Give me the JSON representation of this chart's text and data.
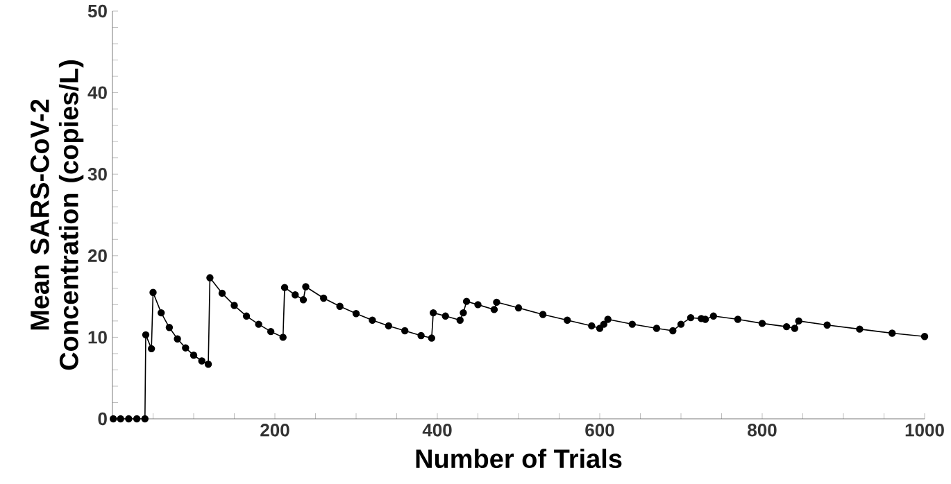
{
  "chart_data": {
    "type": "line",
    "xlabel": "Number of Trials",
    "ylabel": "Mean SARS-CoV-2 Concentration (copies/L)",
    "xlim": [
      0,
      1000
    ],
    "ylim": [
      0,
      50
    ],
    "xticks": [
      {
        "value": 50,
        "label": null
      },
      {
        "value": 100,
        "label": null
      },
      {
        "value": 150,
        "label": null
      },
      200,
      {
        "value": 250,
        "label": null
      },
      {
        "value": 300,
        "label": null
      },
      {
        "value": 350,
        "label": null
      },
      400,
      {
        "value": 450,
        "label": null
      },
      {
        "value": 500,
        "label": null
      },
      {
        "value": 550,
        "label": null
      },
      600,
      {
        "value": 650,
        "label": null
      },
      {
        "value": 700,
        "label": null
      },
      {
        "value": 750,
        "label": null
      },
      800,
      {
        "value": 850,
        "label": null
      },
      {
        "value": 900,
        "label": null
      },
      {
        "value": 950,
        "label": null
      },
      1000
    ],
    "yticks": [
      0,
      {
        "value": 2,
        "label": null
      },
      {
        "value": 4,
        "label": null
      },
      {
        "value": 6,
        "label": null
      },
      {
        "value": 8,
        "label": null
      },
      10,
      {
        "value": 12,
        "label": null
      },
      {
        "value": 14,
        "label": null
      },
      {
        "value": 16,
        "label": null
      },
      {
        "value": 18,
        "label": null
      },
      20,
      {
        "value": 22,
        "label": null
      },
      {
        "value": 24,
        "label": null
      },
      {
        "value": 26,
        "label": null
      },
      {
        "value": 28,
        "label": null
      },
      30,
      {
        "value": 32,
        "label": null
      },
      {
        "value": 34,
        "label": null
      },
      {
        "value": 36,
        "label": null
      },
      {
        "value": 38,
        "label": null
      },
      40,
      {
        "value": 42,
        "label": null
      },
      {
        "value": 44,
        "label": null
      },
      {
        "value": 46,
        "label": null
      },
      {
        "value": 48,
        "label": null
      },
      50
    ],
    "marker": "circle",
    "grid": false,
    "series": [
      {
        "color": "#000000",
        "x": [
          1,
          10,
          20,
          30,
          40,
          41,
          48,
          50,
          60,
          70,
          80,
          90,
          100,
          110,
          118,
          120,
          135,
          150,
          165,
          180,
          195,
          210,
          212,
          225,
          235,
          238,
          260,
          280,
          300,
          320,
          340,
          360,
          380,
          393,
          395,
          410,
          428,
          432,
          436,
          450,
          470,
          473,
          500,
          530,
          560,
          590,
          600,
          605,
          610,
          640,
          670,
          690,
          700,
          712,
          725,
          730,
          740,
          770,
          800,
          830,
          840,
          845,
          880,
          920,
          960,
          1000
        ],
        "values": [
          0,
          0,
          0,
          0,
          0,
          10.3,
          8.6,
          15.5,
          13.0,
          11.2,
          9.8,
          8.7,
          7.8,
          7.1,
          6.7,
          17.3,
          15.4,
          13.9,
          12.6,
          11.6,
          10.7,
          10.0,
          16.1,
          15.2,
          14.6,
          16.2,
          14.8,
          13.8,
          12.9,
          12.1,
          11.4,
          10.8,
          10.2,
          9.9,
          13.0,
          12.6,
          12.1,
          13.0,
          14.4,
          14.0,
          13.4,
          14.3,
          13.6,
          12.8,
          12.1,
          11.4,
          11.1,
          11.6,
          12.2,
          11.6,
          11.1,
          10.8,
          11.6,
          12.4,
          12.3,
          12.2,
          12.6,
          12.2,
          11.7,
          11.3,
          11.1,
          12.0,
          11.5,
          11.0,
          10.5,
          10.1
        ]
      }
    ]
  }
}
